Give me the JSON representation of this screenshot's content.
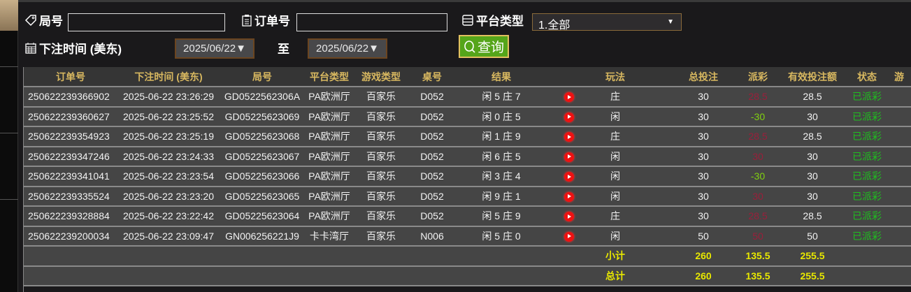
{
  "filters": {
    "round_label": "局号",
    "round_value": "",
    "order_label": "订单号",
    "order_value": "",
    "platform_label": "平台类型",
    "platform_selected": "1.全部",
    "time_label": "下注时间 (美东)",
    "date_from": "2025/06/22▼",
    "to_label": "至",
    "date_to": "2025/06/22▼",
    "query_label": "查询"
  },
  "table": {
    "headers": [
      "订单号",
      "下注时间 (美东)",
      "局号",
      "平台类型",
      "游戏类型",
      "桌号",
      "结果",
      "",
      "玩法",
      "总投注",
      "派彩",
      "有效投注额",
      "状态",
      "游"
    ],
    "rows": [
      {
        "order": "250622239366902",
        "time": "2025-06-22 23:26:29",
        "round": "GD0522562306A",
        "platform": "PA欧洲厅",
        "game": "百家乐",
        "table": "D052",
        "result": "闲 5 庄 7",
        "play": "庄",
        "bet": "30",
        "payout": "28.5",
        "payout_color": "red",
        "valid": "28.5",
        "status": "已派彩"
      },
      {
        "order": "250622239360627",
        "time": "2025-06-22 23:25:52",
        "round": "GD05225623069",
        "platform": "PA欧洲厅",
        "game": "百家乐",
        "table": "D052",
        "result": "闲 0 庄 5",
        "play": "闲",
        "bet": "30",
        "payout": "-30",
        "payout_color": "green",
        "valid": "30",
        "status": "已派彩"
      },
      {
        "order": "250622239354923",
        "time": "2025-06-22 23:25:19",
        "round": "GD05225623068",
        "platform": "PA欧洲厅",
        "game": "百家乐",
        "table": "D052",
        "result": "闲 1 庄 9",
        "play": "庄",
        "bet": "30",
        "payout": "28.5",
        "payout_color": "red",
        "valid": "28.5",
        "status": "已派彩"
      },
      {
        "order": "250622239347246",
        "time": "2025-06-22 23:24:33",
        "round": "GD05225623067",
        "platform": "PA欧洲厅",
        "game": "百家乐",
        "table": "D052",
        "result": "闲 6 庄 5",
        "play": "闲",
        "bet": "30",
        "payout": "30",
        "payout_color": "red",
        "valid": "30",
        "status": "已派彩"
      },
      {
        "order": "250622239341041",
        "time": "2025-06-22 23:23:54",
        "round": "GD05225623066",
        "platform": "PA欧洲厅",
        "game": "百家乐",
        "table": "D052",
        "result": "闲 3 庄 4",
        "play": "闲",
        "bet": "30",
        "payout": "-30",
        "payout_color": "green",
        "valid": "30",
        "status": "已派彩"
      },
      {
        "order": "250622239335524",
        "time": "2025-06-22 23:23:20",
        "round": "GD05225623065",
        "platform": "PA欧洲厅",
        "game": "百家乐",
        "table": "D052",
        "result": "闲 9 庄 1",
        "play": "闲",
        "bet": "30",
        "payout": "30",
        "payout_color": "red",
        "valid": "30",
        "status": "已派彩"
      },
      {
        "order": "250622239328884",
        "time": "2025-06-22 23:22:42",
        "round": "GD05225623064",
        "platform": "PA欧洲厅",
        "game": "百家乐",
        "table": "D052",
        "result": "闲 5 庄 9",
        "play": "庄",
        "bet": "30",
        "payout": "28.5",
        "payout_color": "red",
        "valid": "28.5",
        "status": "已派彩"
      },
      {
        "order": "250622239200034",
        "time": "2025-06-22 23:09:47",
        "round": "GN006256221J9",
        "platform": "卡卡湾厅",
        "game": "百家乐",
        "table": "N006",
        "result": "闲 5 庄 0",
        "play": "闲",
        "bet": "50",
        "payout": "50",
        "payout_color": "red",
        "valid": "50",
        "status": "已派彩"
      }
    ],
    "subtotal": {
      "label": "小计",
      "bet": "260",
      "payout": "135.5",
      "valid": "255.5"
    },
    "total": {
      "label": "总计",
      "bet": "260",
      "payout": "135.5",
      "valid": "255.5"
    }
  },
  "colors": {
    "header_text": "#d8b860",
    "payout_red": "#9a1f3a",
    "payout_green": "#80d010",
    "status_green": "#1ec01e",
    "sum_yellow": "#e8e800",
    "query_button": "#55a51a"
  }
}
